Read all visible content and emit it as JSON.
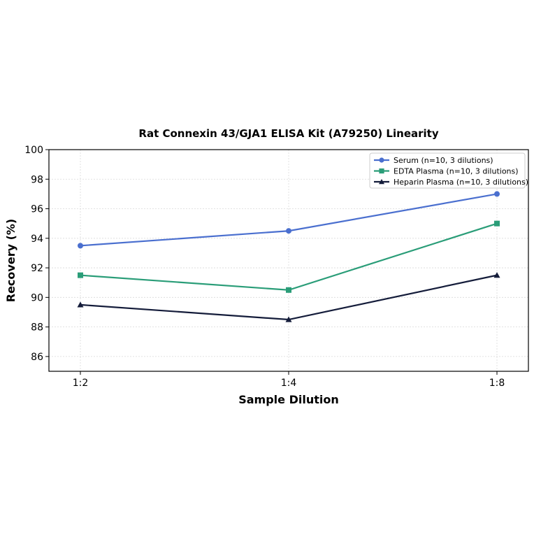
{
  "chart_data": {
    "type": "line",
    "title": "Rat Connexin 43/GJA1 ELISA Kit (A79250) Linearity",
    "xlabel": "Sample Dilution",
    "ylabel": "Recovery (%)",
    "categories": [
      "1:2",
      "1:4",
      "1:8"
    ],
    "ylim": [
      85,
      100
    ],
    "yticks": [
      86,
      88,
      90,
      92,
      94,
      96,
      98,
      100
    ],
    "grid": true,
    "legend_position": "top-right",
    "series": [
      {
        "name": "Serum (n=10, 3 dilutions)",
        "values": [
          93.5,
          94.5,
          97.0
        ],
        "color": "#4a6fcf",
        "marker": "circle"
      },
      {
        "name": "EDTA Plasma (n=10, 3 dilutions)",
        "values": [
          91.5,
          90.5,
          95.0
        ],
        "color": "#2a9d78",
        "marker": "square"
      },
      {
        "name": "Heparin Plasma (n=10, 3 dilutions)",
        "values": [
          89.5,
          88.5,
          91.5
        ],
        "color": "#141c3a",
        "marker": "triangle"
      }
    ]
  }
}
